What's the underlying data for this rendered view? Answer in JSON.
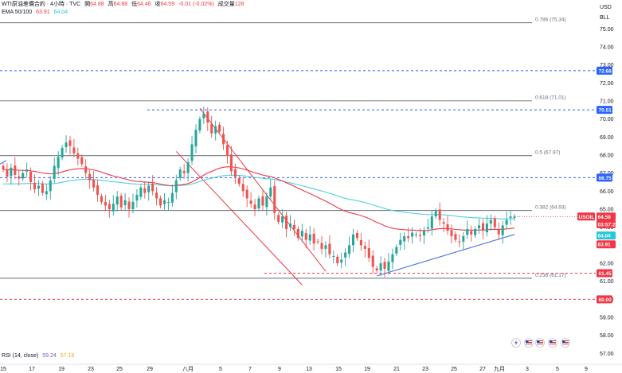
{
  "header": {
    "symbol": "WTI原油差價合約 · 4小時 · TVC",
    "open_label": "開",
    "open": "64.88",
    "high_label": "高",
    "high": "64.88",
    "low_label": "低",
    "low": "64.46",
    "close_label": "收",
    "close": "64.59",
    "change": "-0.01 (-0.02%)",
    "volume_label": "成交量",
    "volume": "128",
    "ema_label": "EMA 50/100",
    "ema50": "63.91",
    "ema100": "64.04",
    "rsi_label": "RSI (14, close)",
    "rsi": "59.24",
    "rsi_ma": "57.18"
  },
  "axis": {
    "currency": "USD",
    "unit": "BLL"
  },
  "colors": {
    "up": "#26a69a",
    "down": "#ef5350",
    "ema50": "#f23645",
    "ema100": "#4dd0e1",
    "blue": "#2962ff",
    "red": "#f23645",
    "fib": "#787b86",
    "trend": "#5b7be0",
    "channel": "#f23645"
  },
  "price_tags": {
    "symbol": "USOIL",
    "last_price": "64.59",
    "countdown": "03:57:24"
  },
  "icons": [
    "lightning-icon",
    "us-flag-icon",
    "us-flag-icon",
    "us-flag-icon",
    "us-flag-icon"
  ],
  "chart_data": {
    "type": "candlestick",
    "title": "WTI原油差價合約",
    "ylim": [
      56.4,
      76.6
    ],
    "y_ticks": [
      "57.00",
      "58.00",
      "59.00",
      "60.00",
      "61.00",
      "62.00",
      "63.00",
      "64.00",
      "65.00",
      "66.00",
      "67.00",
      "68.00",
      "69.00",
      "70.00",
      "71.00",
      "72.00",
      "73.00",
      "74.00",
      "75.00"
    ],
    "x_ticks": [
      "15",
      "17",
      "19",
      "23",
      "25",
      "29",
      "八月",
      "5",
      "7",
      "9",
      "13",
      "15",
      "19",
      "21",
      "23",
      "25",
      "27",
      "九月",
      "3",
      "5",
      "9"
    ],
    "fib_levels": [
      {
        "label": "0.786 (75.34)",
        "value": 75.34
      },
      {
        "label": "0.618 (71.01)",
        "value": 71.01
      },
      {
        "label": "0.5 (67.97)",
        "value": 67.97
      },
      {
        "label": "0.382 (64.93)",
        "value": 64.93
      },
      {
        "label": "0.236 (61.17)",
        "value": 61.17
      }
    ],
    "horizontal_levels": [
      {
        "label": "72.68",
        "value": 72.68,
        "color": "blue"
      },
      {
        "label": "70.51",
        "value": 70.51,
        "color": "blue"
      },
      {
        "label": "66.75",
        "value": 66.75,
        "color": "blue"
      },
      {
        "label": "61.45",
        "value": 61.45,
        "color": "red"
      },
      {
        "label": "60.00",
        "value": 60.0,
        "color": "red"
      }
    ],
    "price_labels": [
      {
        "label": "64.59",
        "value": 64.59,
        "kind": "last"
      },
      {
        "label": "64.04",
        "value": 64.04,
        "kind": "ema100"
      },
      {
        "label": "63.91",
        "value": 63.91,
        "kind": "ema50"
      }
    ],
    "closes": [
      67.2,
      66.8,
      67.3,
      66.9,
      66.7,
      67.0,
      67.2,
      66.5,
      66.1,
      66.3,
      65.9,
      66.0,
      66.6,
      67.4,
      67.9,
      68.4,
      68.7,
      68.5,
      68.1,
      67.8,
      67.5,
      67.0,
      66.6,
      66.2,
      65.8,
      65.4,
      65.2,
      65.0,
      65.3,
      65.7,
      65.1,
      65.5,
      65.0,
      65.4,
      65.8,
      66.2,
      65.9,
      66.3,
      66.0,
      65.6,
      65.2,
      65.5,
      65.4,
      65.9,
      66.6,
      67.2,
      67.0,
      67.6,
      68.6,
      69.4,
      70.0,
      70.3,
      69.8,
      69.2,
      69.6,
      69.3,
      68.6,
      68.0,
      67.1,
      66.8,
      66.4,
      66.0,
      65.6,
      65.3,
      65.0,
      65.6,
      65.2,
      65.7,
      66.2,
      64.8,
      64.3,
      64.6,
      63.9,
      64.2,
      63.9,
      63.4,
      63.8,
      63.3,
      63.6,
      63.1,
      63.2,
      62.8,
      63.0,
      62.5,
      62.4,
      62.0,
      62.2,
      62.6,
      63.0,
      63.6,
      63.4,
      63.0,
      62.8,
      62.3,
      61.8,
      61.6,
      62.0,
      61.7,
      62.1,
      62.5,
      62.9,
      63.3,
      63.5,
      63.4,
      63.7,
      63.6,
      63.5,
      63.8,
      64.0,
      64.6,
      64.9,
      64.4,
      64.2,
      63.8,
      63.5,
      63.3,
      63.2,
      63.5,
      63.9,
      63.6,
      63.9,
      64.1,
      63.8,
      64.2,
      64.4,
      64.0,
      63.6,
      64.1,
      64.4,
      64.6,
      64.59
    ]
  }
}
